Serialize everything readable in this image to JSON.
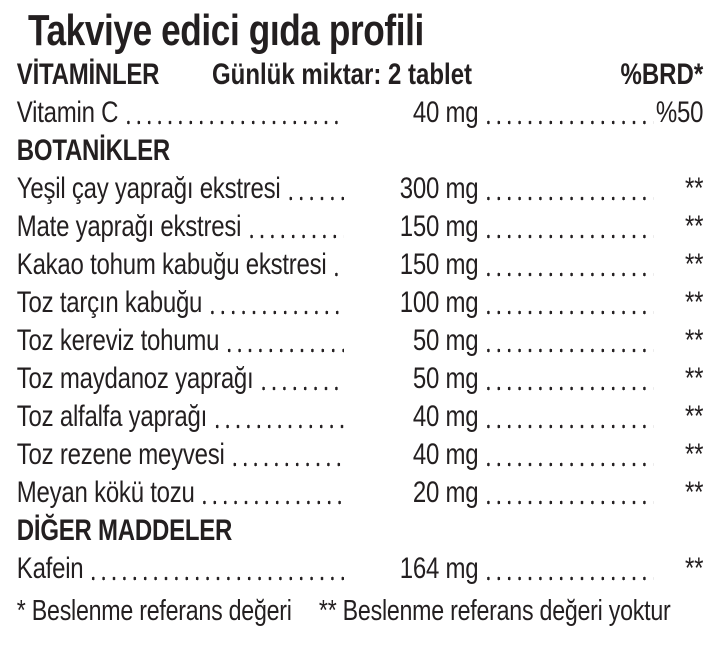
{
  "title": "Takviye edici gıda profili",
  "colors": {
    "text": "#231f20",
    "background": "#ffffff"
  },
  "header": {
    "section": "VİTAMİNLER",
    "serving": "Günlük miktar: 2 tablet",
    "brd": "%BRD*"
  },
  "rows": [
    {
      "type": "item",
      "name": "Vitamin C",
      "amount": "40 mg",
      "brd": "%50"
    },
    {
      "type": "section",
      "label": "BOTANİKLER"
    },
    {
      "type": "item",
      "name": "Yeşil çay yaprağı ekstresi",
      "amount": "300 mg",
      "brd": "**"
    },
    {
      "type": "item",
      "name": "Mate yaprağı ekstresi",
      "amount": "150 mg",
      "brd": "**"
    },
    {
      "type": "item",
      "name": "Kakao tohum kabuğu ekstresi",
      "amount": "150 mg",
      "brd": "**"
    },
    {
      "type": "item",
      "name": "Toz tarçın kabuğu",
      "amount": "100 mg",
      "brd": "**"
    },
    {
      "type": "item",
      "name": "Toz kereviz tohumu",
      "amount": "50 mg",
      "brd": "**"
    },
    {
      "type": "item",
      "name": "Toz maydanoz yaprağı",
      "amount": "50 mg",
      "brd": "**"
    },
    {
      "type": "item",
      "name": "Toz alfalfa yaprağı",
      "amount": "40 mg",
      "brd": "**"
    },
    {
      "type": "item",
      "name": "Toz rezene meyvesi",
      "amount": "40 mg",
      "brd": "**"
    },
    {
      "type": "item",
      "name": "Meyan kökü tozu",
      "amount": "20 mg",
      "brd": "**"
    },
    {
      "type": "section",
      "label": "DİĞER MADDELER"
    },
    {
      "type": "item",
      "name": "Kafein",
      "amount": "164 mg",
      "brd": "**"
    }
  ],
  "footnotes": {
    "left": "* Beslenme referans değeri",
    "right": "** Beslenme referans değeri yoktur"
  }
}
